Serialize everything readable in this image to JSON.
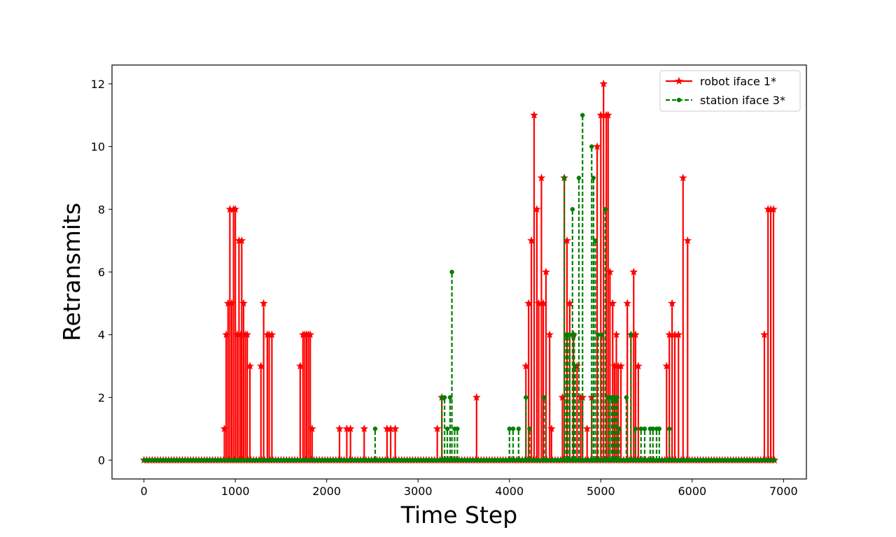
{
  "chart_data": {
    "type": "line",
    "xlabel": "Time Step",
    "ylabel": "Retransmits",
    "xlim": [
      -350,
      7250
    ],
    "ylim": [
      -0.6,
      12.6
    ],
    "xticks": [
      0,
      1000,
      2000,
      3000,
      4000,
      5000,
      6000,
      7000
    ],
    "yticks": [
      0,
      2,
      4,
      6,
      8,
      10,
      12
    ],
    "grid": false,
    "legend_position": "top-right",
    "series": [
      {
        "name": "robot iface 1*",
        "color": "#ff0000",
        "marker": "star",
        "linestyle": "solid",
        "x_start": 0,
        "x_end": 6920,
        "spikes": [
          [
            880,
            1
          ],
          [
            900,
            4
          ],
          [
            920,
            5
          ],
          [
            940,
            8
          ],
          [
            960,
            5
          ],
          [
            980,
            8
          ],
          [
            1000,
            8
          ],
          [
            1020,
            4
          ],
          [
            1040,
            7
          ],
          [
            1060,
            4
          ],
          [
            1070,
            7
          ],
          [
            1090,
            5
          ],
          [
            1110,
            4
          ],
          [
            1130,
            4
          ],
          [
            1160,
            3
          ],
          [
            1280,
            3
          ],
          [
            1310,
            5
          ],
          [
            1350,
            4
          ],
          [
            1370,
            4
          ],
          [
            1400,
            4
          ],
          [
            1710,
            3
          ],
          [
            1740,
            4
          ],
          [
            1760,
            4
          ],
          [
            1780,
            4
          ],
          [
            1800,
            4
          ],
          [
            1820,
            4
          ],
          [
            1840,
            1
          ],
          [
            2140,
            1
          ],
          [
            2220,
            1
          ],
          [
            2260,
            1
          ],
          [
            2410,
            1
          ],
          [
            2660,
            1
          ],
          [
            2700,
            1
          ],
          [
            2750,
            1
          ],
          [
            3210,
            1
          ],
          [
            3260,
            2
          ],
          [
            3640,
            2
          ],
          [
            4180,
            3
          ],
          [
            4210,
            5
          ],
          [
            4240,
            7
          ],
          [
            4270,
            11
          ],
          [
            4300,
            8
          ],
          [
            4320,
            5
          ],
          [
            4350,
            9
          ],
          [
            4370,
            5
          ],
          [
            4400,
            6
          ],
          [
            4440,
            4
          ],
          [
            4460,
            1
          ],
          [
            4580,
            2
          ],
          [
            4600,
            9
          ],
          [
            4630,
            7
          ],
          [
            4660,
            5
          ],
          [
            4700,
            4
          ],
          [
            4740,
            3
          ],
          [
            4780,
            2
          ],
          [
            4800,
            2
          ],
          [
            4850,
            1
          ],
          [
            4900,
            2
          ],
          [
            4960,
            10
          ],
          [
            5000,
            11
          ],
          [
            5030,
            12
          ],
          [
            5060,
            11
          ],
          [
            5080,
            11
          ],
          [
            5100,
            6
          ],
          [
            5130,
            5
          ],
          [
            5150,
            3
          ],
          [
            5170,
            4
          ],
          [
            5190,
            3
          ],
          [
            5220,
            3
          ],
          [
            5290,
            5
          ],
          [
            5330,
            4
          ],
          [
            5360,
            6
          ],
          [
            5380,
            4
          ],
          [
            5410,
            3
          ],
          [
            5720,
            3
          ],
          [
            5750,
            4
          ],
          [
            5780,
            5
          ],
          [
            5810,
            4
          ],
          [
            5850,
            4
          ],
          [
            5900,
            9
          ],
          [
            5950,
            7
          ],
          [
            6790,
            4
          ],
          [
            6830,
            8
          ],
          [
            6860,
            8
          ],
          [
            6890,
            8
          ]
        ]
      },
      {
        "name": "station iface 3*",
        "color": "#008000",
        "marker": "dot",
        "linestyle": "dashed",
        "x_start": 0,
        "x_end": 6920,
        "spikes": [
          [
            2530,
            1
          ],
          [
            3260,
            2
          ],
          [
            3290,
            2
          ],
          [
            3320,
            1
          ],
          [
            3350,
            2
          ],
          [
            3370,
            6
          ],
          [
            3400,
            1
          ],
          [
            3430,
            1
          ],
          [
            4000,
            1
          ],
          [
            4040,
            1
          ],
          [
            4100,
            1
          ],
          [
            4180,
            2
          ],
          [
            4220,
            1
          ],
          [
            4380,
            2
          ],
          [
            4600,
            9
          ],
          [
            4620,
            4
          ],
          [
            4640,
            4
          ],
          [
            4660,
            4
          ],
          [
            4690,
            8
          ],
          [
            4710,
            4
          ],
          [
            4720,
            3
          ],
          [
            4760,
            9
          ],
          [
            4800,
            11
          ],
          [
            4900,
            10
          ],
          [
            4920,
            9
          ],
          [
            4940,
            7
          ],
          [
            4970,
            4
          ],
          [
            5010,
            4
          ],
          [
            5050,
            8
          ],
          [
            5080,
            2
          ],
          [
            5100,
            2
          ],
          [
            5120,
            2
          ],
          [
            5140,
            2
          ],
          [
            5160,
            2
          ],
          [
            5180,
            2
          ],
          [
            5200,
            1
          ],
          [
            5280,
            2
          ],
          [
            5330,
            4
          ],
          [
            5380,
            1
          ],
          [
            5440,
            1
          ],
          [
            5480,
            1
          ],
          [
            5540,
            1
          ],
          [
            5570,
            1
          ],
          [
            5610,
            1
          ],
          [
            5640,
            1
          ],
          [
            5750,
            1
          ]
        ]
      }
    ]
  }
}
